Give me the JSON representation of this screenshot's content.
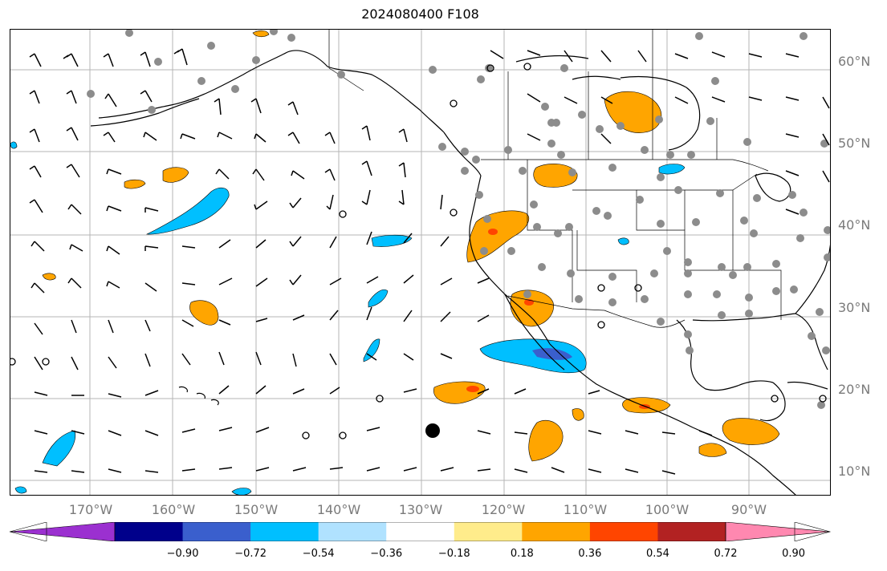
{
  "title": "2024080400 F108",
  "lat_labels": [
    "10°N",
    "20°N",
    "30°N",
    "40°N",
    "50°N",
    "60°N"
  ],
  "lon_labels": [
    "170°W",
    "160°W",
    "150°W",
    "140°W",
    "130°W",
    "120°W",
    "110°W",
    "100°W",
    "90°W"
  ],
  "colorbar": {
    "colors": [
      "#9b30d0",
      "#00008b",
      "#3a5fcd",
      "#00bfff",
      "#b0e2ff",
      "#ffffff",
      "#ffec8b",
      "#ffa500",
      "#ff4500",
      "#b22222",
      "#ff88b0"
    ],
    "ticks": [
      "−0.90",
      "−0.72",
      "−0.54",
      "−0.36",
      "−0.18",
      "0.18",
      "0.36",
      "0.54",
      "0.72",
      "0.90"
    ]
  },
  "map": {
    "projection": "lat-lon",
    "lon_range": [
      -180,
      -80
    ],
    "lat_range": [
      8,
      65
    ],
    "grid": true,
    "features": [
      "coastlines",
      "country borders",
      "US state borders",
      "Canadian province borders",
      "wind barbs",
      "calm-wind circles",
      "gray station dots",
      "shaded anomaly contours"
    ],
    "storm_marker": "black filled circle near 16°N 129°W"
  }
}
